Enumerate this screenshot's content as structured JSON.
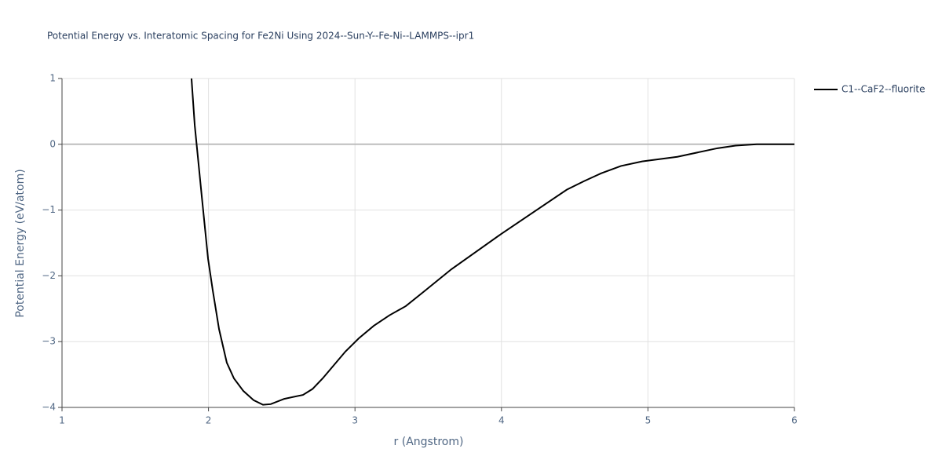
{
  "chart_data": {
    "type": "line",
    "title": "Potential Energy vs. Interatomic Spacing for Fe2Ni Using 2024--Sun-Y--Fe-Ni--LAMMPS--ipr1",
    "x_label": "r (Angstrom)",
    "y_label": "Potential Energy (eV/atom)",
    "xlim": [
      1,
      6
    ],
    "ylim": [
      -4,
      1
    ],
    "xticks": [
      1,
      2,
      3,
      4,
      5,
      6
    ],
    "yticks": [
      1,
      0,
      {
        "value": -1,
        "label": "−1"
      },
      {
        "value": -2,
        "label": "−2"
      },
      {
        "value": -3,
        "label": "−3"
      },
      {
        "value": -4,
        "label": "−4"
      }
    ],
    "grid": true,
    "legend_position": "top-right",
    "series": [
      {
        "name": "C1--CaF2--fluorite",
        "color": "#000000",
        "x": [
          1.884,
          1.906,
          1.954,
          1.997,
          2.029,
          2.072,
          2.125,
          2.174,
          2.238,
          2.308,
          2.372,
          2.425,
          2.517,
          2.645,
          2.71,
          2.779,
          2.935,
          3.026,
          3.128,
          3.235,
          3.347,
          3.47,
          3.658,
          4.0,
          4.446,
          4.564,
          4.682,
          4.816,
          4.96,
          5.201,
          5.475,
          5.598,
          5.743,
          6.0
        ],
        "values": [
          1.0,
          0.29,
          -0.79,
          -1.74,
          -2.22,
          -2.81,
          -3.32,
          -3.56,
          -3.75,
          -3.89,
          -3.96,
          -3.95,
          -3.87,
          -3.81,
          -3.72,
          -3.56,
          -3.15,
          -2.95,
          -2.76,
          -2.6,
          -2.46,
          -2.24,
          -1.9,
          -1.36,
          -0.69,
          -0.56,
          -0.44,
          -0.33,
          -0.26,
          -0.19,
          -0.06,
          -0.02,
          0.0,
          0.0
        ]
      }
    ]
  }
}
